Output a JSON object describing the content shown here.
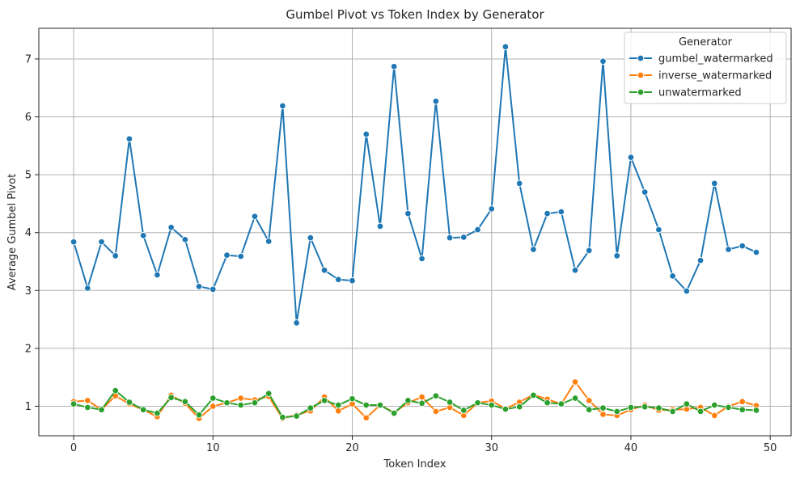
{
  "chart_data": {
    "type": "line",
    "title": "Gumbel Pivot vs Token Index by Generator",
    "xlabel": "Token Index",
    "ylabel": "Average Gumbel Pivot",
    "xlim": [
      -2.5,
      51.5
    ],
    "ylim": [
      0.49,
      7.53
    ],
    "xticks": [
      0,
      10,
      20,
      30,
      40,
      50
    ],
    "yticks": [
      1,
      2,
      3,
      4,
      5,
      6,
      7
    ],
    "grid": true,
    "legend_title": "Generator",
    "legend_position": "top-right",
    "x": [
      0,
      1,
      2,
      3,
      4,
      5,
      6,
      7,
      8,
      9,
      10,
      11,
      12,
      13,
      14,
      15,
      16,
      17,
      18,
      19,
      20,
      21,
      22,
      23,
      24,
      25,
      26,
      27,
      28,
      29,
      30,
      31,
      32,
      33,
      34,
      35,
      36,
      37,
      38,
      39,
      40,
      41,
      42,
      43,
      44,
      45,
      46,
      47,
      48,
      49
    ],
    "series": [
      {
        "name": "gumbel_watermarked",
        "color": "#1f77b4",
        "values": [
          3.84,
          3.04,
          3.84,
          3.6,
          5.62,
          3.95,
          3.27,
          4.09,
          3.88,
          3.07,
          3.02,
          3.61,
          3.59,
          4.28,
          3.85,
          6.19,
          2.44,
          3.91,
          3.35,
          3.19,
          3.17,
          5.7,
          4.11,
          6.87,
          4.33,
          3.55,
          6.27,
          3.91,
          3.92,
          4.05,
          4.41,
          7.21,
          4.85,
          3.71,
          4.33,
          4.36,
          3.35,
          3.69,
          6.96,
          3.6,
          5.3,
          4.7,
          4.05,
          3.25,
          2.99,
          3.52,
          4.85,
          3.71,
          3.77,
          3.66
        ]
      },
      {
        "name": "inverse_watermarked",
        "color": "#ff7f0e",
        "values": [
          1.08,
          1.1,
          0.94,
          1.18,
          1.04,
          0.94,
          0.82,
          1.19,
          1.05,
          0.79,
          1.0,
          1.06,
          1.14,
          1.11,
          1.17,
          0.79,
          0.85,
          0.92,
          1.16,
          0.92,
          1.04,
          0.8,
          1.02,
          0.89,
          1.06,
          1.16,
          0.91,
          0.98,
          0.84,
          1.06,
          1.09,
          0.96,
          1.07,
          1.2,
          1.12,
          1.04,
          1.42,
          1.1,
          0.86,
          0.84,
          0.94,
          1.02,
          0.93,
          0.94,
          0.95,
          0.98,
          0.84,
          1.0,
          1.08,
          1.01
        ]
      },
      {
        "name": "unwatermarked",
        "color": "#2ca02c",
        "values": [
          1.04,
          0.98,
          0.94,
          1.27,
          1.07,
          0.94,
          0.88,
          1.15,
          1.08,
          0.85,
          1.14,
          1.06,
          1.02,
          1.06,
          1.22,
          0.81,
          0.83,
          0.97,
          1.1,
          1.02,
          1.13,
          1.02,
          1.02,
          0.88,
          1.1,
          1.05,
          1.18,
          1.07,
          0.93,
          1.06,
          1.02,
          0.95,
          0.99,
          1.19,
          1.06,
          1.04,
          1.14,
          0.94,
          0.97,
          0.91,
          0.98,
          0.99,
          0.97,
          0.91,
          1.04,
          0.91,
          1.02,
          0.98,
          0.94,
          0.93
        ]
      }
    ]
  }
}
